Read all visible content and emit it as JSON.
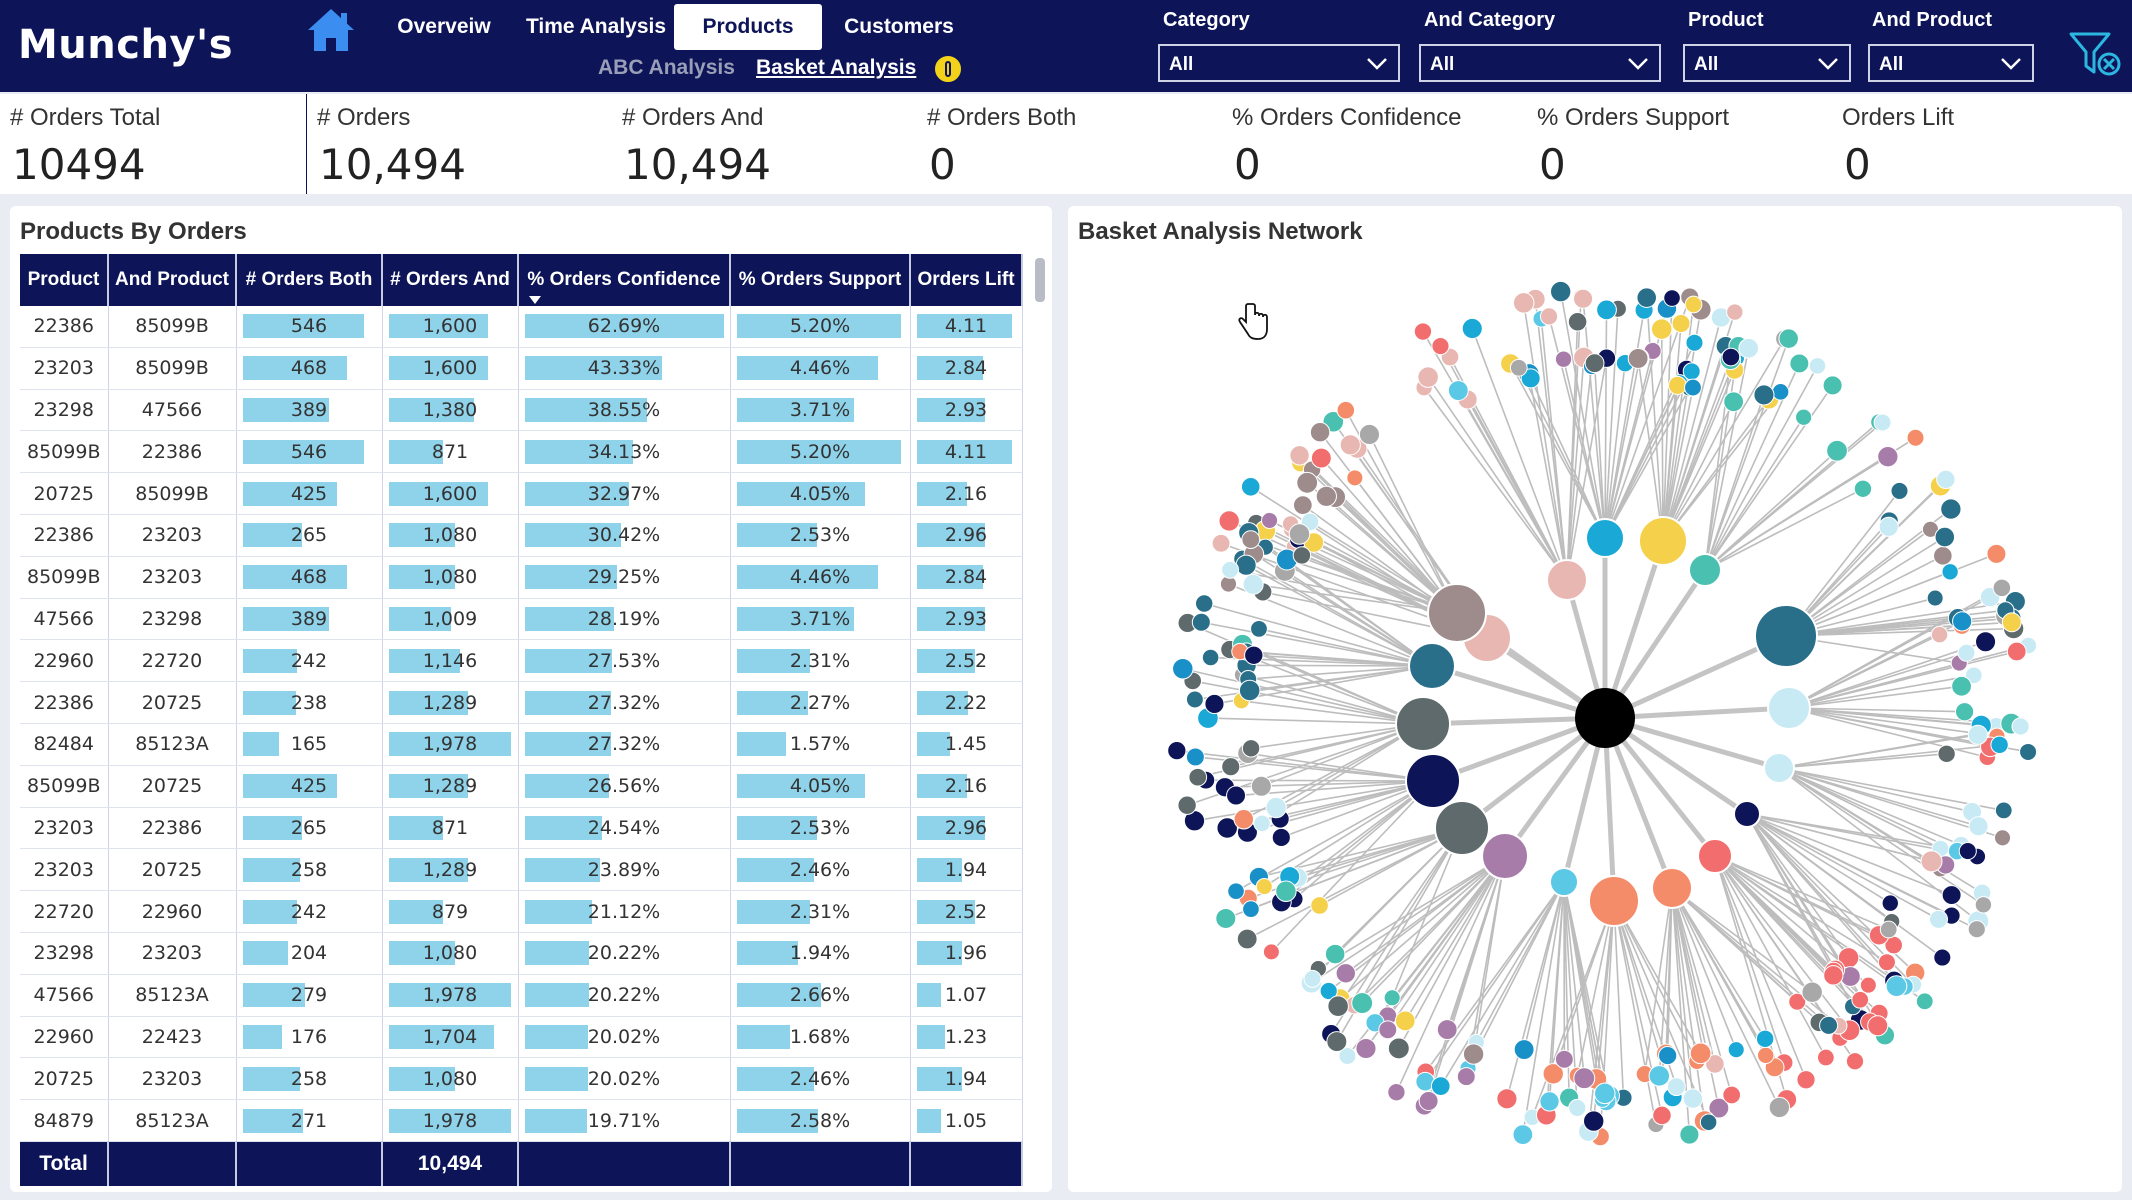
{
  "app": {
    "logo": "Munchy's"
  },
  "nav": {
    "tabs": [
      "Overveiw",
      "Time Analysis",
      "Products",
      "Customers"
    ],
    "active_tab": "Products",
    "subtabs": [
      "ABC Analysis",
      "Basket Analysis"
    ],
    "active_subtab": "Basket Analysis"
  },
  "filters": [
    {
      "label": "Category",
      "value": "All"
    },
    {
      "label": "And Category",
      "value": "All"
    },
    {
      "label": "Product",
      "value": "All"
    },
    {
      "label": "And Product",
      "value": "All"
    }
  ],
  "kpis": [
    {
      "label": "# Orders Total",
      "value": "10494"
    },
    {
      "label": "# Orders",
      "value": "10,494"
    },
    {
      "label": "# Orders And",
      "value": "10,494"
    },
    {
      "label": "# Orders Both",
      "value": "0"
    },
    {
      "label": "% Orders Confidence",
      "value": "0"
    },
    {
      "label": "% Orders Support",
      "value": "0"
    },
    {
      "label": "Orders Lift",
      "value": "0"
    }
  ],
  "table": {
    "title": "Products By Orders",
    "columns": [
      "Product",
      "And Product",
      "# Orders Both",
      "# Orders And",
      "% Orders Confidence",
      "% Orders Support",
      "Orders Lift"
    ],
    "rows": [
      [
        "22386",
        "85099B",
        "546",
        "1,600",
        "62.69%",
        "5.20%",
        "4.11"
      ],
      [
        "23203",
        "85099B",
        "468",
        "1,600",
        "43.33%",
        "4.46%",
        "2.84"
      ],
      [
        "23298",
        "47566",
        "389",
        "1,380",
        "38.55%",
        "3.71%",
        "2.93"
      ],
      [
        "85099B",
        "22386",
        "546",
        "871",
        "34.13%",
        "5.20%",
        "4.11"
      ],
      [
        "20725",
        "85099B",
        "425",
        "1,600",
        "32.97%",
        "4.05%",
        "2.16"
      ],
      [
        "22386",
        "23203",
        "265",
        "1,080",
        "30.42%",
        "2.53%",
        "2.96"
      ],
      [
        "85099B",
        "23203",
        "468",
        "1,080",
        "29.25%",
        "4.46%",
        "2.84"
      ],
      [
        "47566",
        "23298",
        "389",
        "1,009",
        "28.19%",
        "3.71%",
        "2.93"
      ],
      [
        "22960",
        "22720",
        "242",
        "1,146",
        "27.53%",
        "2.31%",
        "2.52"
      ],
      [
        "22386",
        "20725",
        "238",
        "1,289",
        "27.32%",
        "2.27%",
        "2.22"
      ],
      [
        "82484",
        "85123A",
        "165",
        "1,978",
        "27.32%",
        "1.57%",
        "1.45"
      ],
      [
        "85099B",
        "20725",
        "425",
        "1,289",
        "26.56%",
        "4.05%",
        "2.16"
      ],
      [
        "23203",
        "22386",
        "265",
        "871",
        "24.54%",
        "2.53%",
        "2.96"
      ],
      [
        "23203",
        "20725",
        "258",
        "1,289",
        "23.89%",
        "2.46%",
        "1.94"
      ],
      [
        "22720",
        "22960",
        "242",
        "879",
        "21.12%",
        "2.31%",
        "2.52"
      ],
      [
        "23298",
        "23203",
        "204",
        "1,080",
        "20.22%",
        "1.94%",
        "1.96"
      ],
      [
        "47566",
        "85123A",
        "279",
        "1,978",
        "20.22%",
        "2.66%",
        "1.07"
      ],
      [
        "22960",
        "22423",
        "176",
        "1,704",
        "20.02%",
        "1.68%",
        "1.23"
      ],
      [
        "20725",
        "23203",
        "258",
        "1,080",
        "20.02%",
        "2.46%",
        "1.94"
      ],
      [
        "84879",
        "85123A",
        "271",
        "1,978",
        "19.71%",
        "2.58%",
        "1.05"
      ]
    ],
    "total": {
      "label": "Total",
      "orders_and": "10,494"
    }
  },
  "network": {
    "title": "Basket Analysis Network",
    "hub_color": "#000000",
    "palette": [
      "#5bc8e6",
      "#1aa8d6",
      "#0d1457",
      "#f5d04a",
      "#f48c6a",
      "#e8b7b2",
      "#a87ca8",
      "#5e6a6b",
      "#49c0b0",
      "#2a6f8a",
      "#f26e6e",
      "#9e8b8b",
      "#c7eaf4",
      "#1a90c8",
      "#a8a8a8"
    ]
  },
  "icons": {
    "home": "home-icon",
    "info": "info-icon",
    "clear_filters": "clear-filter-icon",
    "cursor": "hand-cursor-icon"
  }
}
